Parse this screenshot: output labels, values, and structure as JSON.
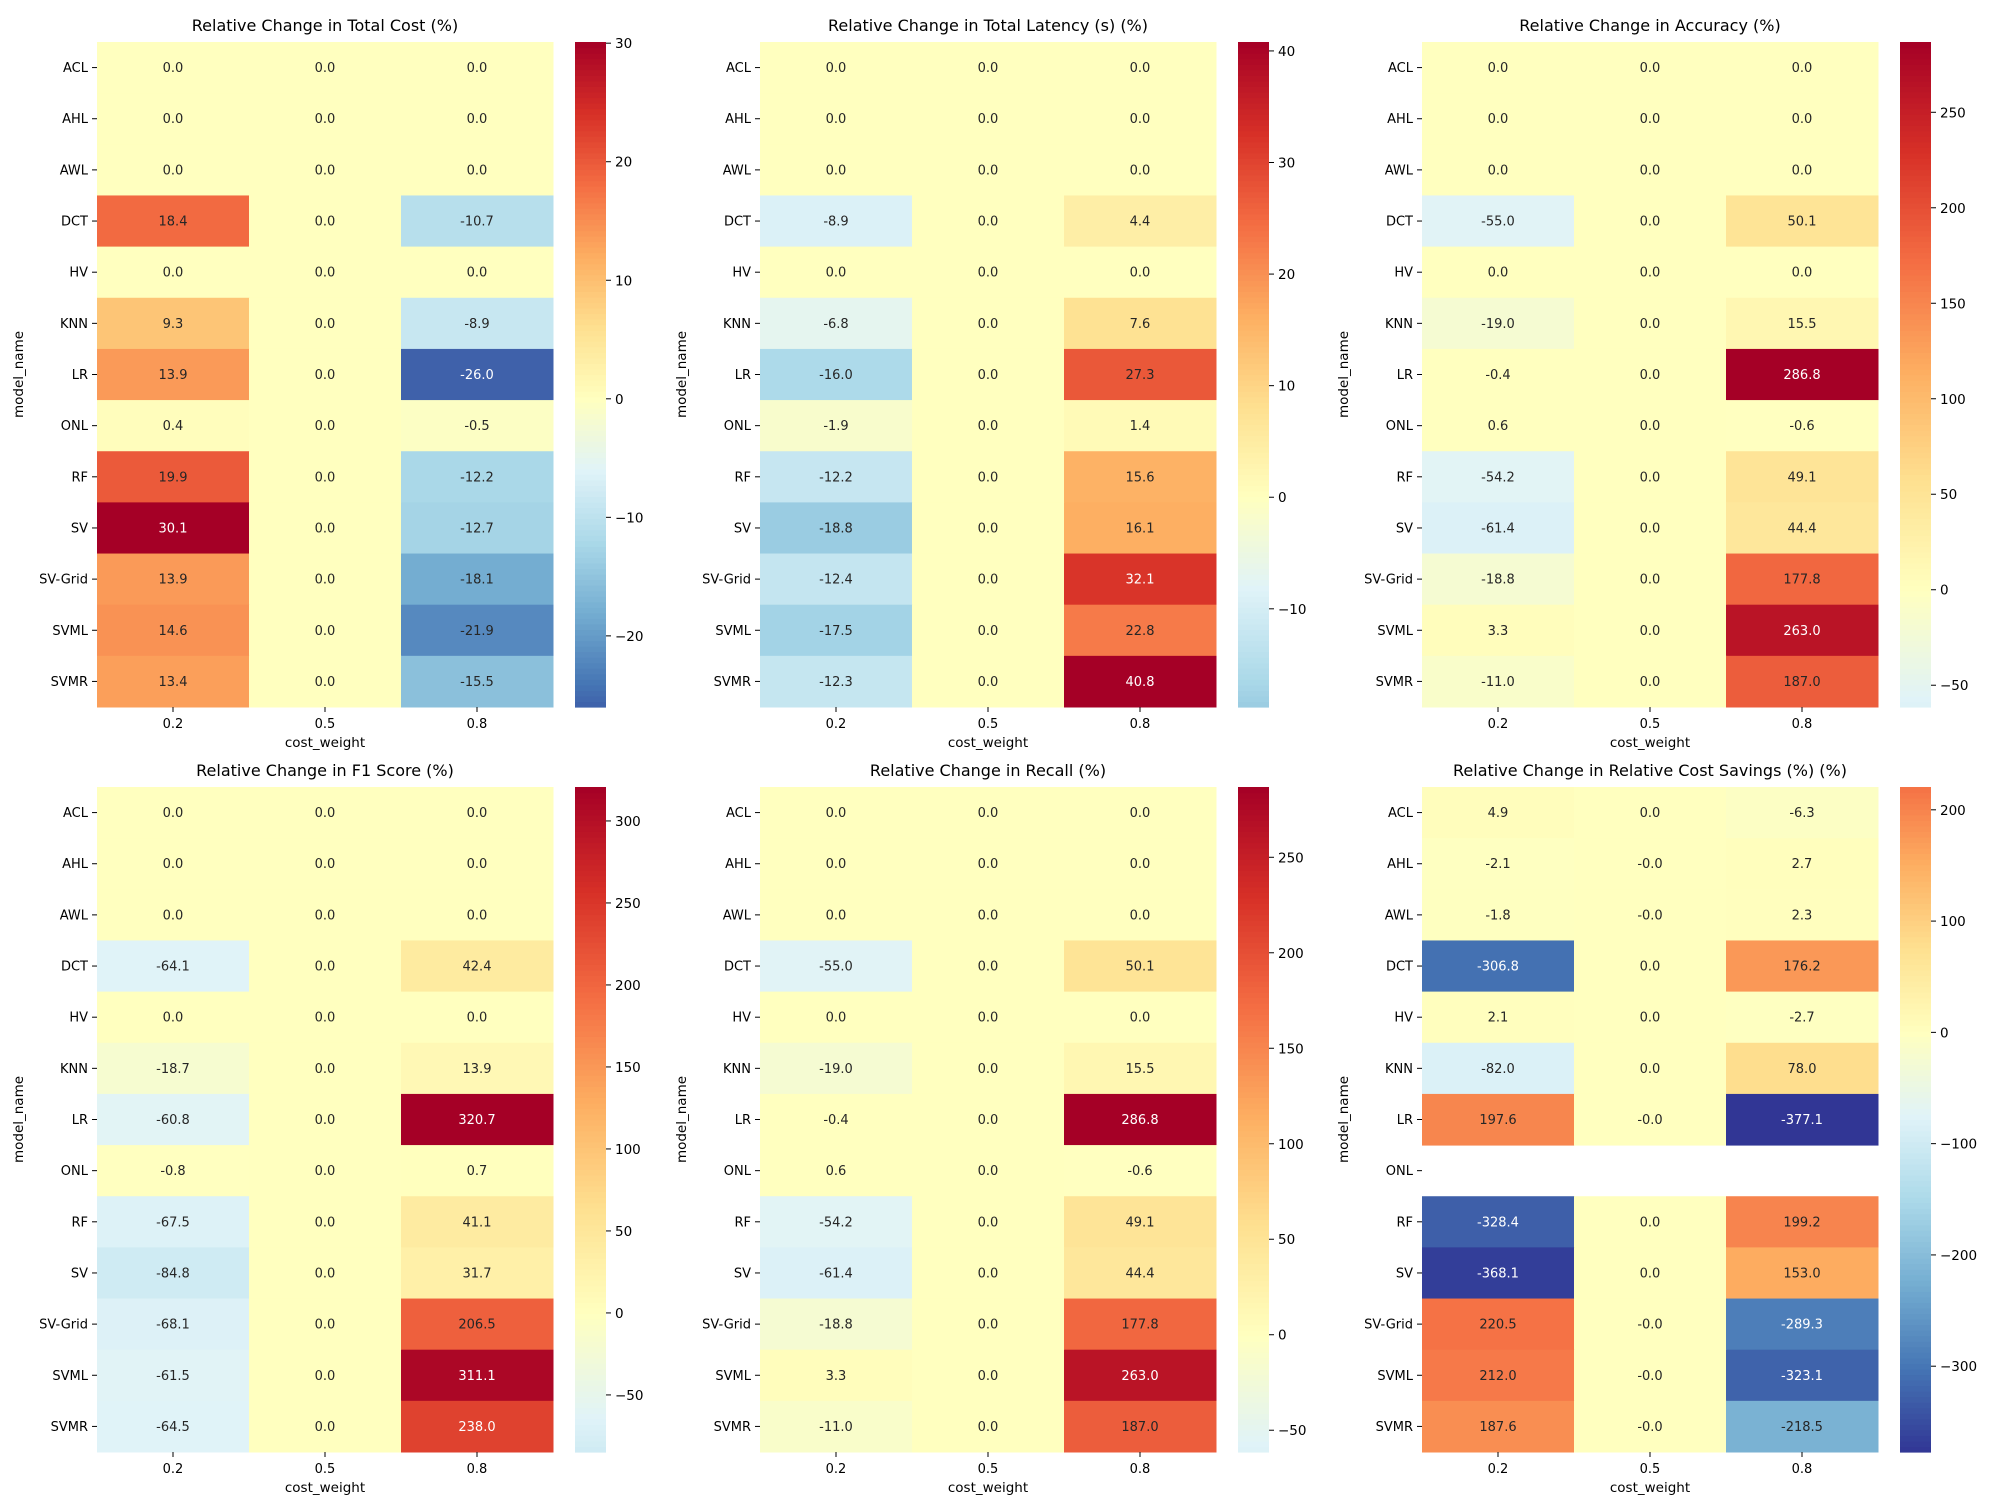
{
  "chart_data": [
    {
      "type": "heatmap",
      "title": "Relative Change in Total Cost (%)",
      "xlabel": "cost_weight",
      "ylabel": "model_name",
      "x_categories": [
        "0.2",
        "0.5",
        "0.8"
      ],
      "y_categories": [
        "ACL",
        "AHL",
        "AWL",
        "DCT",
        "HV",
        "KNN",
        "LR",
        "ONL",
        "RF",
        "SV",
        "SV-Grid",
        "SVML",
        "SVMR"
      ],
      "values": [
        [
          0.0,
          0.0,
          0.0
        ],
        [
          0.0,
          0.0,
          0.0
        ],
        [
          0.0,
          0.0,
          0.0
        ],
        [
          18.4,
          0.0,
          -10.7
        ],
        [
          0.0,
          0.0,
          0.0
        ],
        [
          9.3,
          0.0,
          -8.9
        ],
        [
          13.9,
          0.0,
          -26.0
        ],
        [
          0.4,
          0.0,
          -0.5
        ],
        [
          19.9,
          0.0,
          -12.2
        ],
        [
          30.1,
          0.0,
          -12.7
        ],
        [
          13.9,
          0.0,
          -18.1
        ],
        [
          14.6,
          0.0,
          -21.9
        ],
        [
          13.4,
          0.0,
          -15.5
        ]
      ],
      "labels": [
        [
          "0.0",
          "0.0",
          "0.0"
        ],
        [
          "0.0",
          "0.0",
          "0.0"
        ],
        [
          "0.0",
          "0.0",
          "0.0"
        ],
        [
          "18.4",
          "0.0",
          "-10.7"
        ],
        [
          "0.0",
          "0.0",
          "0.0"
        ],
        [
          "9.3",
          "0.0",
          "-8.9"
        ],
        [
          "13.9",
          "0.0",
          "-26.0"
        ],
        [
          "0.4",
          "0.0",
          "-0.5"
        ],
        [
          "19.9",
          "0.0",
          "-12.2"
        ],
        [
          "30.1",
          "0.0",
          "-12.7"
        ],
        [
          "13.9",
          "0.0",
          "-18.1"
        ],
        [
          "14.6",
          "0.0",
          "-21.9"
        ],
        [
          "13.4",
          "0.0",
          "-15.5"
        ]
      ],
      "colormap": "RdYlBu_r, centered at 0",
      "colorbar": {
        "vmin": -26.0,
        "vmax": 30.1,
        "ticks": [
          -20,
          -10,
          0,
          10,
          20,
          30
        ],
        "tick_labels": [
          "−20",
          "−10",
          "0",
          "10",
          "20",
          "30"
        ]
      }
    },
    {
      "type": "heatmap",
      "title": "Relative Change in Total Latency (s) (%)",
      "xlabel": "cost_weight",
      "ylabel": "model_name",
      "x_categories": [
        "0.2",
        "0.5",
        "0.8"
      ],
      "y_categories": [
        "ACL",
        "AHL",
        "AWL",
        "DCT",
        "HV",
        "KNN",
        "LR",
        "ONL",
        "RF",
        "SV",
        "SV-Grid",
        "SVML",
        "SVMR"
      ],
      "values": [
        [
          0.0,
          0.0,
          0.0
        ],
        [
          0.0,
          0.0,
          0.0
        ],
        [
          0.0,
          0.0,
          0.0
        ],
        [
          -8.9,
          0.0,
          4.4
        ],
        [
          0.0,
          0.0,
          0.0
        ],
        [
          -6.8,
          0.0,
          7.6
        ],
        [
          -16.0,
          0.0,
          27.3
        ],
        [
          -1.9,
          0.0,
          1.4
        ],
        [
          -12.2,
          0.0,
          15.6
        ],
        [
          -18.8,
          0.0,
          16.1
        ],
        [
          -12.4,
          0.0,
          32.1
        ],
        [
          -17.5,
          0.0,
          22.8
        ],
        [
          -12.3,
          0.0,
          40.8
        ]
      ],
      "labels": [
        [
          "0.0",
          "0.0",
          "0.0"
        ],
        [
          "0.0",
          "0.0",
          "0.0"
        ],
        [
          "0.0",
          "0.0",
          "0.0"
        ],
        [
          "-8.9",
          "0.0",
          "4.4"
        ],
        [
          "0.0",
          "0.0",
          "0.0"
        ],
        [
          "-6.8",
          "0.0",
          "7.6"
        ],
        [
          "-16.0",
          "0.0",
          "27.3"
        ],
        [
          "-1.9",
          "0.0",
          "1.4"
        ],
        [
          "-12.2",
          "0.0",
          "15.6"
        ],
        [
          "-18.8",
          "0.0",
          "16.1"
        ],
        [
          "-12.4",
          "0.0",
          "32.1"
        ],
        [
          "-17.5",
          "0.0",
          "22.8"
        ],
        [
          "-12.3",
          "0.0",
          "40.8"
        ]
      ],
      "colormap": "RdYlBu_r, centered at 0",
      "colorbar": {
        "vmin": -18.8,
        "vmax": 40.8,
        "ticks": [
          -10,
          0,
          10,
          20,
          30,
          40
        ],
        "tick_labels": [
          "−10",
          "0",
          "10",
          "20",
          "30",
          "40"
        ]
      }
    },
    {
      "type": "heatmap",
      "title": "Relative Change in Accuracy (%)",
      "xlabel": "cost_weight",
      "ylabel": "model_name",
      "x_categories": [
        "0.2",
        "0.5",
        "0.8"
      ],
      "y_categories": [
        "ACL",
        "AHL",
        "AWL",
        "DCT",
        "HV",
        "KNN",
        "LR",
        "ONL",
        "RF",
        "SV",
        "SV-Grid",
        "SVML",
        "SVMR"
      ],
      "values": [
        [
          0.0,
          0.0,
          0.0
        ],
        [
          0.0,
          0.0,
          0.0
        ],
        [
          0.0,
          0.0,
          0.0
        ],
        [
          -55.0,
          0.0,
          50.1
        ],
        [
          0.0,
          0.0,
          0.0
        ],
        [
          -19.0,
          0.0,
          15.5
        ],
        [
          -0.4,
          0.0,
          286.8
        ],
        [
          0.6,
          0.0,
          -0.6
        ],
        [
          -54.2,
          0.0,
          49.1
        ],
        [
          -61.4,
          0.0,
          44.4
        ],
        [
          -18.8,
          0.0,
          177.8
        ],
        [
          3.3,
          0.0,
          263.0
        ],
        [
          -11.0,
          0.0,
          187.0
        ]
      ],
      "labels": [
        [
          "0.0",
          "0.0",
          "0.0"
        ],
        [
          "0.0",
          "0.0",
          "0.0"
        ],
        [
          "0.0",
          "0.0",
          "0.0"
        ],
        [
          "-55.0",
          "0.0",
          "50.1"
        ],
        [
          "0.0",
          "0.0",
          "0.0"
        ],
        [
          "-19.0",
          "0.0",
          "15.5"
        ],
        [
          "-0.4",
          "0.0",
          "286.8"
        ],
        [
          "0.6",
          "0.0",
          "-0.6"
        ],
        [
          "-54.2",
          "0.0",
          "49.1"
        ],
        [
          "-61.4",
          "0.0",
          "44.4"
        ],
        [
          "-18.8",
          "0.0",
          "177.8"
        ],
        [
          "3.3",
          "0.0",
          "263.0"
        ],
        [
          "-11.0",
          "0.0",
          "187.0"
        ]
      ],
      "colormap": "RdYlBu_r, centered at 0",
      "colorbar": {
        "vmin": -61.4,
        "vmax": 286.8,
        "ticks": [
          -50,
          0,
          50,
          100,
          150,
          200,
          250
        ],
        "tick_labels": [
          "−50",
          "0",
          "50",
          "100",
          "150",
          "200",
          "250"
        ]
      }
    },
    {
      "type": "heatmap",
      "title": "Relative Change in F1 Score (%)",
      "xlabel": "cost_weight",
      "ylabel": "model_name",
      "x_categories": [
        "0.2",
        "0.5",
        "0.8"
      ],
      "y_categories": [
        "ACL",
        "AHL",
        "AWL",
        "DCT",
        "HV",
        "KNN",
        "LR",
        "ONL",
        "RF",
        "SV",
        "SV-Grid",
        "SVML",
        "SVMR"
      ],
      "values": [
        [
          0.0,
          0.0,
          0.0
        ],
        [
          0.0,
          0.0,
          0.0
        ],
        [
          0.0,
          0.0,
          0.0
        ],
        [
          -64.1,
          0.0,
          42.4
        ],
        [
          0.0,
          0.0,
          0.0
        ],
        [
          -18.7,
          0.0,
          13.9
        ],
        [
          -60.8,
          0.0,
          320.7
        ],
        [
          -0.8,
          0.0,
          0.7
        ],
        [
          -67.5,
          0.0,
          41.1
        ],
        [
          -84.8,
          0.0,
          31.7
        ],
        [
          -68.1,
          0.0,
          206.5
        ],
        [
          -61.5,
          0.0,
          311.1
        ],
        [
          -64.5,
          0.0,
          238.0
        ]
      ],
      "labels": [
        [
          "0.0",
          "0.0",
          "0.0"
        ],
        [
          "0.0",
          "0.0",
          "0.0"
        ],
        [
          "0.0",
          "0.0",
          "0.0"
        ],
        [
          "-64.1",
          "0.0",
          "42.4"
        ],
        [
          "0.0",
          "0.0",
          "0.0"
        ],
        [
          "-18.7",
          "0.0",
          "13.9"
        ],
        [
          "-60.8",
          "0.0",
          "320.7"
        ],
        [
          "-0.8",
          "0.0",
          "0.7"
        ],
        [
          "-67.5",
          "0.0",
          "41.1"
        ],
        [
          "-84.8",
          "0.0",
          "31.7"
        ],
        [
          "-68.1",
          "0.0",
          "206.5"
        ],
        [
          "-61.5",
          "0.0",
          "311.1"
        ],
        [
          "-64.5",
          "0.0",
          "238.0"
        ]
      ],
      "colormap": "RdYlBu_r, centered at 0",
      "colorbar": {
        "vmin": -84.8,
        "vmax": 320.7,
        "ticks": [
          -50,
          0,
          50,
          100,
          150,
          200,
          250,
          300
        ],
        "tick_labels": [
          "−50",
          "0",
          "50",
          "100",
          "150",
          "200",
          "250",
          "300"
        ]
      }
    },
    {
      "type": "heatmap",
      "title": "Relative Change in Recall (%)",
      "xlabel": "cost_weight",
      "ylabel": "model_name",
      "x_categories": [
        "0.2",
        "0.5",
        "0.8"
      ],
      "y_categories": [
        "ACL",
        "AHL",
        "AWL",
        "DCT",
        "HV",
        "KNN",
        "LR",
        "ONL",
        "RF",
        "SV",
        "SV-Grid",
        "SVML",
        "SVMR"
      ],
      "values": [
        [
          0.0,
          0.0,
          0.0
        ],
        [
          0.0,
          0.0,
          0.0
        ],
        [
          0.0,
          0.0,
          0.0
        ],
        [
          -55.0,
          0.0,
          50.1
        ],
        [
          0.0,
          0.0,
          0.0
        ],
        [
          -19.0,
          0.0,
          15.5
        ],
        [
          -0.4,
          0.0,
          286.8
        ],
        [
          0.6,
          0.0,
          -0.6
        ],
        [
          -54.2,
          0.0,
          49.1
        ],
        [
          -61.4,
          0.0,
          44.4
        ],
        [
          -18.8,
          0.0,
          177.8
        ],
        [
          3.3,
          0.0,
          263.0
        ],
        [
          -11.0,
          0.0,
          187.0
        ]
      ],
      "labels": [
        [
          "0.0",
          "0.0",
          "0.0"
        ],
        [
          "0.0",
          "0.0",
          "0.0"
        ],
        [
          "0.0",
          "0.0",
          "0.0"
        ],
        [
          "-55.0",
          "0.0",
          "50.1"
        ],
        [
          "0.0",
          "0.0",
          "0.0"
        ],
        [
          "-19.0",
          "0.0",
          "15.5"
        ],
        [
          "-0.4",
          "0.0",
          "286.8"
        ],
        [
          "0.6",
          "0.0",
          "-0.6"
        ],
        [
          "-54.2",
          "0.0",
          "49.1"
        ],
        [
          "-61.4",
          "0.0",
          "44.4"
        ],
        [
          "-18.8",
          "0.0",
          "177.8"
        ],
        [
          "3.3",
          "0.0",
          "263.0"
        ],
        [
          "-11.0",
          "0.0",
          "187.0"
        ]
      ],
      "colormap": "RdYlBu_r, centered at 0",
      "colorbar": {
        "vmin": -61.4,
        "vmax": 286.8,
        "ticks": [
          -50,
          0,
          50,
          100,
          150,
          200,
          250
        ],
        "tick_labels": [
          "−50",
          "0",
          "50",
          "100",
          "150",
          "200",
          "250"
        ]
      }
    },
    {
      "type": "heatmap",
      "title": "Relative Change in Relative Cost Savings (%) (%)",
      "xlabel": "cost_weight",
      "ylabel": "model_name",
      "x_categories": [
        "0.2",
        "0.5",
        "0.8"
      ],
      "y_categories": [
        "ACL",
        "AHL",
        "AWL",
        "DCT",
        "HV",
        "KNN",
        "LR",
        "ONL",
        "RF",
        "SV",
        "SV-Grid",
        "SVML",
        "SVMR"
      ],
      "values": [
        [
          4.9,
          0.0,
          -6.3
        ],
        [
          -2.1,
          0.0,
          2.7
        ],
        [
          -1.8,
          0.0,
          2.3
        ],
        [
          -306.8,
          0.0,
          176.2
        ],
        [
          2.1,
          0.0,
          -2.7
        ],
        [
          -82.0,
          0.0,
          78.0
        ],
        [
          197.6,
          0.0,
          -377.1
        ],
        [
          null,
          null,
          null
        ],
        [
          -328.4,
          0.0,
          199.2
        ],
        [
          -368.1,
          0.0,
          153.0
        ],
        [
          220.5,
          0.0,
          -289.3
        ],
        [
          212.0,
          0.0,
          -323.1
        ],
        [
          187.6,
          0.0,
          -218.5
        ]
      ],
      "labels": [
        [
          "4.9",
          "0.0",
          "-6.3"
        ],
        [
          "-2.1",
          "-0.0",
          "2.7"
        ],
        [
          "-1.8",
          "-0.0",
          "2.3"
        ],
        [
          "-306.8",
          "0.0",
          "176.2"
        ],
        [
          "2.1",
          "0.0",
          "-2.7"
        ],
        [
          "-82.0",
          "0.0",
          "78.0"
        ],
        [
          "197.6",
          "-0.0",
          "-377.1"
        ],
        [
          "",
          "",
          ""
        ],
        [
          "-328.4",
          "0.0",
          "199.2"
        ],
        [
          "-368.1",
          "0.0",
          "153.0"
        ],
        [
          "220.5",
          "-0.0",
          "-289.3"
        ],
        [
          "212.0",
          "-0.0",
          "-323.1"
        ],
        [
          "187.6",
          "-0.0",
          "-218.5"
        ]
      ],
      "colormap": "RdYlBu_r, centered at 0",
      "colorbar": {
        "vmin": -377.1,
        "vmax": 220.5,
        "ticks": [
          -300,
          -200,
          -100,
          0,
          100,
          200
        ],
        "tick_labels": [
          "−300",
          "−200",
          "−100",
          "0",
          "100",
          "200"
        ]
      }
    }
  ]
}
